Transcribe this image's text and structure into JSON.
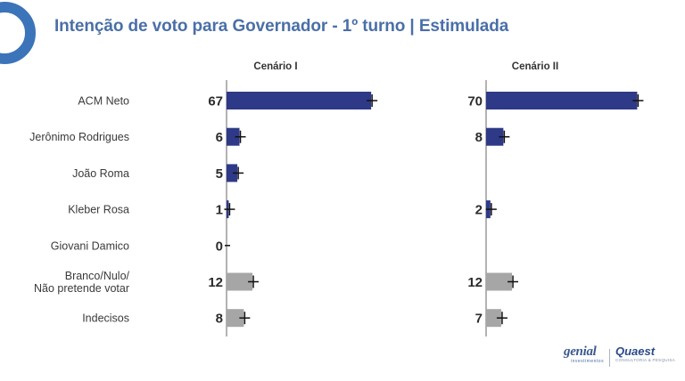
{
  "header": {
    "title": "Intenção de voto para Governador - 1º turno | Estimulada"
  },
  "colors": {
    "candidate_bar": "#2e3a87",
    "other_bar": "#a6a6a6",
    "axis": "#9a9a9a",
    "title": "#4a6fa8",
    "logo_ring": "#3b74b9"
  },
  "chart_data": {
    "type": "bar",
    "orientation": "horizontal",
    "categories": [
      "ACM Neto",
      "Jerônimo Rodrigues",
      "João Roma",
      "Kleber Rosa",
      "Giovani Damico",
      "Branco/Nulo/\nNão pretende votar",
      "Indecisos"
    ],
    "panels": [
      {
        "title": "Cenário I",
        "values": [
          67,
          6,
          5,
          1,
          0,
          12,
          8
        ],
        "labels": [
          "67",
          "6",
          "5",
          "1",
          "0",
          "12",
          "8"
        ]
      },
      {
        "title": "Cenário II",
        "values": [
          70,
          8,
          null,
          2,
          null,
          12,
          7
        ],
        "labels": [
          "70",
          "8",
          "",
          "2",
          "",
          "12",
          "7"
        ]
      }
    ],
    "error_bars": true,
    "bar_colors": [
      "candidate",
      "candidate",
      "candidate",
      "candidate",
      "candidate",
      "other",
      "other"
    ]
  },
  "logos": {
    "genial_name": "genial",
    "genial_sub": "investimentos",
    "quaest_name": "Quaest",
    "quaest_sub": "CONSULTORIA & PESQUISA"
  }
}
